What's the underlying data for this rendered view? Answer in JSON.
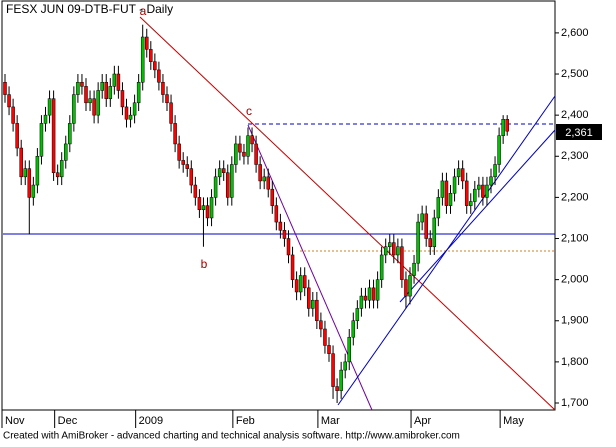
{
  "chart_data": {
    "type": "candlestick",
    "title": "FESX JUN 09-DTB-FUT - Daily",
    "footer": "Created with AmiBroker - advanced charting and technical analysis software. http://www.amibroker.com",
    "annotations": [
      "a",
      "b",
      "c"
    ],
    "last_price_label": "2,361",
    "up_color": "#00c000",
    "down_color": "#ff0000",
    "ylim": [
      1683,
      2680
    ],
    "yticks": [
      {
        "value": 1700,
        "label": "1,700"
      },
      {
        "value": 1800,
        "label": "1,800"
      },
      {
        "value": 1900,
        "label": "1,900"
      },
      {
        "value": 2000,
        "label": "2,000"
      },
      {
        "value": 2100,
        "label": "2,100"
      },
      {
        "value": 2200,
        "label": "2,200"
      },
      {
        "value": 2300,
        "label": "2,300"
      },
      {
        "value": 2400,
        "label": "2,400"
      },
      {
        "value": 2500,
        "label": "2,500"
      },
      {
        "value": 2600,
        "label": "2,600"
      }
    ],
    "categories": [
      "Nov",
      null,
      null,
      null,
      null,
      null,
      null,
      null,
      null,
      null,
      null,
      null,
      null,
      "Dec",
      null,
      null,
      null,
      null,
      null,
      null,
      null,
      null,
      null,
      null,
      null,
      null,
      null,
      null,
      null,
      null,
      null,
      null,
      null,
      "2009",
      null,
      null,
      null,
      null,
      null,
      null,
      null,
      null,
      null,
      null,
      null,
      null,
      null,
      null,
      null,
      null,
      null,
      null,
      null,
      null,
      null,
      null,
      null,
      "Feb",
      null,
      null,
      null,
      null,
      null,
      null,
      null,
      null,
      null,
      null,
      null,
      null,
      null,
      null,
      null,
      null,
      null,
      null,
      null,
      null,
      "Mar",
      null,
      null,
      null,
      null,
      null,
      null,
      null,
      null,
      null,
      null,
      null,
      null,
      null,
      null,
      null,
      null,
      null,
      null,
      null,
      null,
      null,
      null,
      "Apr",
      null,
      null,
      null,
      null,
      null,
      null,
      null,
      null,
      null,
      null,
      null,
      null,
      null,
      null,
      null,
      null,
      null,
      null,
      null,
      null,
      null,
      "May",
      null
    ],
    "open": [
      2480,
      2450,
      2420,
      2380,
      2320,
      2250,
      2270,
      2200,
      2230,
      2300,
      2380,
      2400,
      2440,
      2260,
      2250,
      2290,
      2330,
      2380,
      2450,
      2480,
      2470,
      2430,
      2440,
      2400,
      2460,
      2480,
      2440,
      2470,
      2500,
      2460,
      2420,
      2390,
      2400,
      2430,
      2480,
      2590,
      2560,
      2530,
      2510,
      2480,
      2450,
      2430,
      2380,
      2330,
      2290,
      2280,
      2270,
      2230,
      2200,
      2170,
      2180,
      2150,
      2200,
      2250,
      2270,
      2260,
      2200,
      2280,
      2330,
      2310,
      2300,
      2350,
      2330,
      2280,
      2240,
      2250,
      2220,
      2180,
      2140,
      2120,
      2100,
      2060,
      2000,
      1970,
      2010,
      1980,
      1930,
      1950,
      1900,
      1880,
      1840,
      1820,
      1740,
      1730,
      1780,
      1800,
      1860,
      1900,
      1930,
      1960,
      1950,
      1980,
      1950,
      2000,
      2060,
      2080,
      2090,
      2060,
      2080,
      2000,
      1960,
      2010,
      2040,
      2140,
      2160,
      2100,
      2080,
      2150,
      2200,
      2240,
      2180,
      2210,
      2250,
      2270,
      2240,
      2180,
      2190,
      2220,
      2230,
      2200,
      2230,
      2250,
      2280,
      2350,
      2390
    ],
    "high": [
      2500,
      2470,
      2440,
      2400,
      2340,
      2290,
      2290,
      2250,
      2320,
      2400,
      2420,
      2460,
      2460,
      2280,
      2310,
      2350,
      2400,
      2470,
      2500,
      2500,
      2490,
      2460,
      2460,
      2480,
      2500,
      2500,
      2490,
      2520,
      2520,
      2480,
      2440,
      2420,
      2450,
      2500,
      2620,
      2610,
      2580,
      2550,
      2530,
      2500,
      2470,
      2450,
      2400,
      2350,
      2310,
      2300,
      2290,
      2250,
      2220,
      2200,
      2200,
      2220,
      2270,
      2290,
      2290,
      2280,
      2300,
      2350,
      2350,
      2330,
      2370,
      2370,
      2350,
      2300,
      2270,
      2270,
      2240,
      2200,
      2160,
      2140,
      2120,
      2080,
      2020,
      2030,
      2030,
      2000,
      1970,
      1970,
      1920,
      1900,
      1860,
      1840,
      1760,
      1800,
      1820,
      1880,
      1920,
      1950,
      1980,
      1980,
      2000,
      2000,
      2020,
      2080,
      2100,
      2110,
      2110,
      2100,
      2100,
      2020,
      2030,
      2060,
      2160,
      2180,
      2180,
      2120,
      2170,
      2220,
      2260,
      2260,
      2230,
      2270,
      2290,
      2290,
      2260,
      2210,
      2240,
      2250,
      2250,
      2250,
      2270,
      2300,
      2370,
      2400,
      2400
    ],
    "low": [
      2430,
      2400,
      2360,
      2300,
      2230,
      2230,
      2110,
      2180,
      2210,
      2280,
      2360,
      2380,
      2240,
      2230,
      2230,
      2270,
      2310,
      2360,
      2430,
      2450,
      2410,
      2410,
      2380,
      2380,
      2440,
      2420,
      2420,
      2450,
      2440,
      2400,
      2370,
      2370,
      2380,
      2410,
      2460,
      2540,
      2510,
      2490,
      2460,
      2430,
      2410,
      2360,
      2310,
      2270,
      2260,
      2250,
      2210,
      2180,
      2150,
      2080,
      2130,
      2130,
      2180,
      2230,
      2240,
      2180,
      2180,
      2260,
      2290,
      2280,
      2280,
      2310,
      2260,
      2220,
      2220,
      2200,
      2160,
      2120,
      2100,
      2080,
      2040,
      1980,
      1950,
      1950,
      1960,
      1910,
      1910,
      1880,
      1860,
      1820,
      1800,
      1710,
      1700,
      1710,
      1760,
      1780,
      1840,
      1880,
      1910,
      1930,
      1930,
      1930,
      1930,
      1980,
      2040,
      2060,
      2040,
      2040,
      1980,
      1930,
      1940,
      1990,
      2020,
      2120,
      2080,
      2060,
      2060,
      2130,
      2180,
      2160,
      2160,
      2190,
      2230,
      2220,
      2160,
      2160,
      2170,
      2200,
      2180,
      2180,
      2210,
      2230,
      2260,
      2330,
      2350
    ],
    "close": [
      2450,
      2420,
      2380,
      2320,
      2250,
      2270,
      2200,
      2230,
      2300,
      2380,
      2400,
      2440,
      2260,
      2250,
      2290,
      2330,
      2380,
      2450,
      2480,
      2470,
      2430,
      2440,
      2400,
      2460,
      2480,
      2440,
      2470,
      2500,
      2460,
      2420,
      2390,
      2400,
      2430,
      2480,
      2590,
      2560,
      2530,
      2510,
      2480,
      2450,
      2430,
      2380,
      2330,
      2290,
      2280,
      2270,
      2230,
      2200,
      2170,
      2180,
      2150,
      2200,
      2250,
      2270,
      2260,
      2200,
      2280,
      2330,
      2310,
      2300,
      2350,
      2330,
      2280,
      2240,
      2250,
      2220,
      2180,
      2140,
      2120,
      2100,
      2060,
      2000,
      1970,
      2010,
      1980,
      1930,
      1950,
      1900,
      1880,
      1840,
      1820,
      1740,
      1730,
      1780,
      1800,
      1860,
      1900,
      1930,
      1960,
      1950,
      1980,
      1950,
      2000,
      2060,
      2080,
      2090,
      2060,
      2080,
      2000,
      1960,
      2010,
      2040,
      2140,
      2160,
      2100,
      2080,
      2150,
      2200,
      2240,
      2180,
      2210,
      2250,
      2270,
      2240,
      2180,
      2190,
      2220,
      2230,
      2200,
      2230,
      2250,
      2280,
      2350,
      2390,
      2361
    ]
  }
}
